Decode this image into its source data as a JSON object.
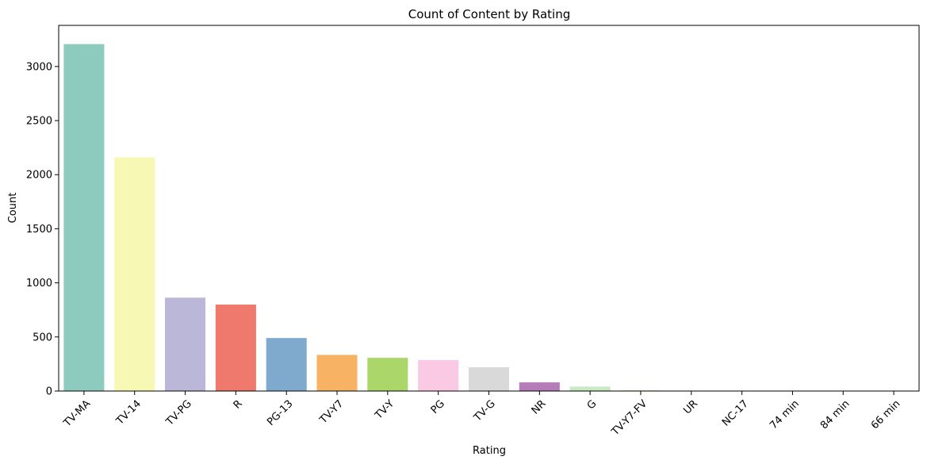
{
  "chart_data": {
    "type": "bar",
    "title": "Count of Content by Rating",
    "xlabel": "Rating",
    "ylabel": "Count",
    "ylim": [
      0,
      3380
    ],
    "yticks": [
      0,
      500,
      1000,
      1500,
      2000,
      2500,
      3000
    ],
    "categories": [
      "TV-MA",
      "TV-14",
      "TV-PG",
      "R",
      "PG-13",
      "TV-Y7",
      "TV-Y",
      "PG",
      "TV-G",
      "NR",
      "G",
      "TV-Y7-FV",
      "UR",
      "NC-17",
      "74 min",
      "84 min",
      "66 min"
    ],
    "values": [
      3207,
      2160,
      863,
      799,
      490,
      334,
      307,
      287,
      220,
      80,
      41,
      6,
      3,
      3,
      1,
      1,
      1
    ],
    "colors": [
      "#8dcbbe",
      "#f8f8b5",
      "#bbb7d8",
      "#f0796e",
      "#7faacd",
      "#f8b264",
      "#aad66a",
      "#fac9e3",
      "#d9d9d9",
      "#b57cb8",
      "#c9e9c2",
      "#f6ea6a",
      "#8dcbbe",
      "#f8f8b5",
      "#bbb7d8",
      "#f0796e",
      "#7faacd"
    ],
    "grid": false,
    "legend": "none"
  }
}
